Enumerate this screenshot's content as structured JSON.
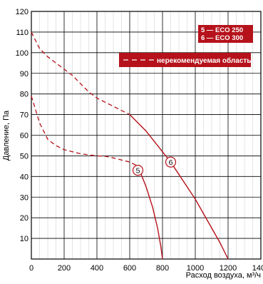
{
  "chart_data": {
    "type": "line",
    "xlabel": "Расход воздуха, м³/ч",
    "ylabel": "Давление, Па",
    "xlim": [
      0,
      1400
    ],
    "ylim": [
      0,
      120
    ],
    "x_ticks": [
      "0",
      "200",
      "400",
      "600",
      "800",
      "1000",
      "1200",
      "1400"
    ],
    "y_ticks": [
      "10",
      "20",
      "30",
      "40",
      "50",
      "60",
      "70",
      "80",
      "90",
      "100",
      "110",
      "120"
    ],
    "grid": true,
    "legend": {
      "position": "top-right",
      "entries": [
        "5 — ECO 250",
        "6 — ECO 300"
      ],
      "dashed_entry": "нерекомендуемая область"
    },
    "series": [
      {
        "name": "ECO 250",
        "marker_label": "5",
        "marker_at": [
          650,
          43
        ],
        "not_recommended": {
          "x": [
            0,
            50,
            100,
            150,
            200,
            250,
            300,
            350,
            400,
            450,
            500,
            550,
            600,
            650
          ],
          "y": [
            79,
            66,
            58,
            55,
            53,
            52,
            51,
            50.5,
            50,
            49.8,
            49,
            48,
            47,
            45
          ]
        },
        "recommended": {
          "x": [
            650,
            700,
            740,
            770,
            790,
            800
          ],
          "y": [
            45,
            35,
            25,
            15,
            6,
            0
          ]
        }
      },
      {
        "name": "ECO 300",
        "marker_label": "6",
        "marker_at": [
          850,
          47
        ],
        "not_recommended": {
          "x": [
            0,
            50,
            100,
            150,
            200,
            250,
            300,
            350,
            400,
            450,
            500,
            550,
            600
          ],
          "y": [
            110,
            102,
            98,
            95,
            92,
            89,
            85,
            81,
            78,
            76,
            74,
            72,
            70
          ]
        },
        "recommended": {
          "x": [
            600,
            650,
            700,
            750,
            800,
            850,
            900,
            950,
            1000,
            1050,
            1100,
            1150,
            1200
          ],
          "y": [
            70,
            66,
            62,
            57,
            52,
            47,
            41,
            35,
            29,
            22,
            15,
            8,
            0
          ]
        }
      }
    ],
    "colors": {
      "curve": "#b5121b",
      "legend_bg": "#b5121b",
      "legend_text": "#ffffff",
      "grid": "#000000"
    }
  }
}
